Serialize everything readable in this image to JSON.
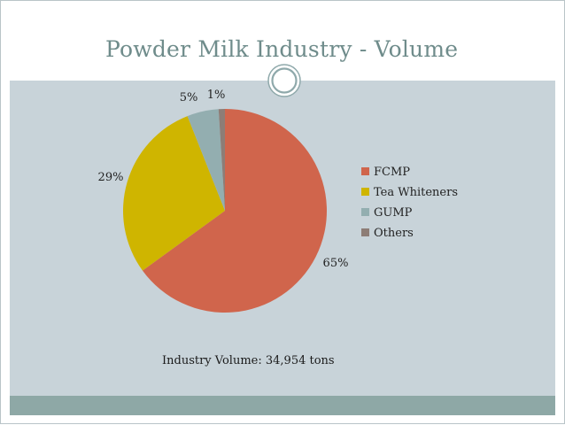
{
  "title": "Powder Milk Industry - Volume",
  "note": "Industry Volume: 34,954 tons",
  "chart_data": {
    "type": "pie",
    "title": "",
    "slices": [
      {
        "label": "FCMP",
        "value": 65,
        "display": "65%",
        "color": "#d0654c"
      },
      {
        "label": "Tea Whiteners",
        "value": 29,
        "display": "29%",
        "color": "#cfb500"
      },
      {
        "label": "GUMP",
        "value": 5,
        "display": "5%",
        "color": "#93aeb0"
      },
      {
        "label": "Others",
        "value": 1,
        "display": "1%",
        "color": "#8d7d76"
      }
    ],
    "legend_position": "right",
    "start_angle": "12 o'clock",
    "direction": "clockwise"
  }
}
